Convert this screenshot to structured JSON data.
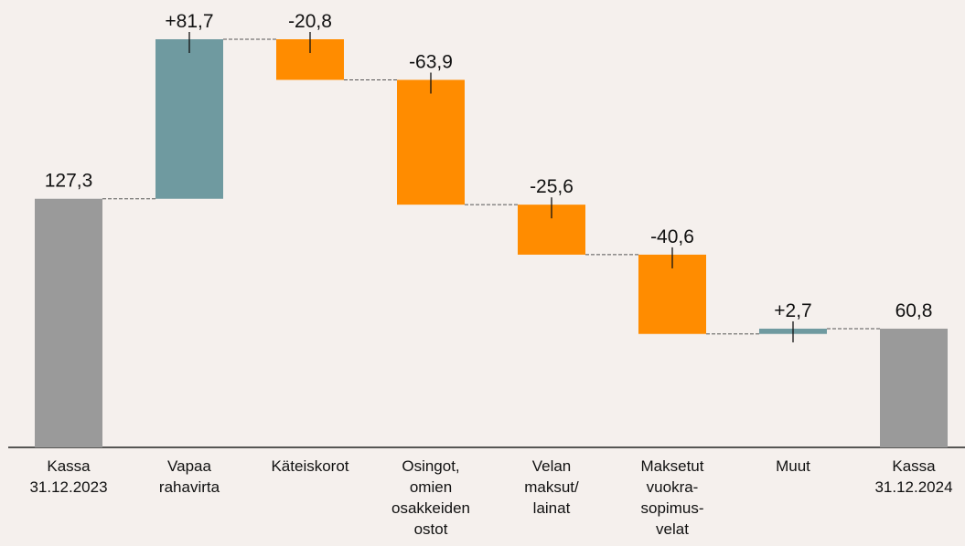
{
  "chart_data": {
    "type": "waterfall",
    "categories": [
      [
        "Kassa",
        "31.12.2023"
      ],
      [
        "Vapaa",
        "rahavirta"
      ],
      [
        "Käteiskorot"
      ],
      [
        "Osingot,",
        "omien",
        "osakkeiden",
        "ostot"
      ],
      [
        "Velan",
        "maksut/",
        "lainat"
      ],
      [
        "Maksetut",
        "vuokra-",
        "sopimus-",
        "velat"
      ],
      [
        "Muut"
      ],
      [
        "Kassa",
        "31.12.2024"
      ]
    ],
    "values": [
      127.3,
      81.7,
      -20.8,
      -63.9,
      -25.6,
      -40.6,
      2.7,
      60.8
    ],
    "value_labels": [
      "127,3",
      "+81,7",
      "-20,8",
      "-63,9",
      "-25,6",
      "-40,6",
      "+2,7",
      "60,8"
    ],
    "colors": [
      "#9a9a9a",
      "#6f9aa0",
      "#ff8c00",
      "#ff8c00",
      "#ff8c00",
      "#ff8c00",
      "#6f9aa0",
      "#9a9a9a"
    ]
  }
}
